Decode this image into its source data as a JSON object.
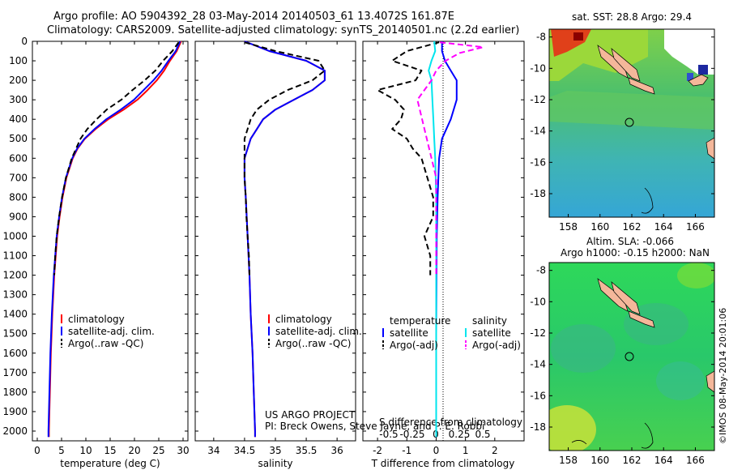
{
  "header": {
    "line1": "Argo profile: AO 5904392_28 03-May-2014 20140503_61 13.4072S 161.87E",
    "line2": "Climatology: CARS2009. Satellite-adjusted climatology: synTS_20140501.nc (2.2d earlier)"
  },
  "colors": {
    "climatology": "#ff0000",
    "satellite": "#0000ff",
    "argo": "#000000",
    "salinity_satellite": "#00e5ee",
    "salinity_argo": "#ff00ff"
  },
  "chart_data": [
    {
      "id": "temperature",
      "type": "line",
      "xlabel": "temperature (deg C)",
      "ylabel": "",
      "xlim": [
        -1,
        31
      ],
      "ylim": [
        2050,
        0
      ],
      "xticks": [
        0,
        5,
        10,
        15,
        20,
        25,
        30
      ],
      "yticks": [
        0,
        100,
        200,
        300,
        400,
        500,
        600,
        700,
        800,
        900,
        1000,
        1100,
        1200,
        1300,
        1400,
        1500,
        1600,
        1700,
        1800,
        1900,
        2000
      ],
      "legend": [
        "climatology",
        "satellite-adj. clim.",
        "Argo(..raw -QC)"
      ],
      "series": [
        {
          "name": "climatology",
          "depth": [
            0,
            50,
            100,
            150,
            200,
            250,
            300,
            350,
            400,
            450,
            500,
            550,
            600,
            700,
            800,
            900,
            1000,
            1200,
            1400,
            1600,
            1800,
            2000,
            2030
          ],
          "values": [
            29.6,
            28.7,
            27.3,
            26.1,
            24.6,
            22.7,
            20.6,
            17.8,
            14.6,
            12.0,
            9.8,
            8.3,
            7.3,
            6.0,
            5.2,
            4.6,
            4.1,
            3.5,
            3.1,
            2.8,
            2.6,
            2.4,
            2.4
          ]
        },
        {
          "name": "satellite-adj. clim.",
          "depth": [
            0,
            50,
            100,
            150,
            200,
            250,
            300,
            350,
            400,
            450,
            500,
            550,
            600,
            700,
            800,
            900,
            1000,
            1200,
            1400,
            1600,
            1800,
            2000,
            2030
          ],
          "values": [
            29.4,
            28.5,
            27.0,
            25.6,
            23.9,
            21.9,
            19.9,
            17.2,
            14.2,
            11.8,
            9.7,
            8.2,
            7.2,
            5.9,
            5.1,
            4.5,
            4.0,
            3.4,
            3.0,
            2.7,
            2.5,
            2.3,
            2.3
          ]
        },
        {
          "name": "Argo(..raw -QC)",
          "depth": [
            5,
            50,
            100,
            150,
            200,
            250,
            300,
            350,
            400,
            450,
            500,
            550,
            600,
            700,
            800,
            900,
            1000,
            1100,
            1200
          ],
          "values": [
            29.1,
            27.8,
            25.9,
            24.3,
            22.1,
            19.6,
            17.3,
            14.3,
            12.2,
            10.3,
            8.9,
            8.0,
            7.1,
            5.9,
            5.1,
            4.5,
            4.0,
            3.7,
            3.5
          ]
        }
      ]
    },
    {
      "id": "salinity",
      "type": "line",
      "xlabel": "salinity",
      "xlim": [
        33.7,
        36.3
      ],
      "ylim": [
        2050,
        0
      ],
      "xticks": [
        34,
        34.5,
        35,
        35.5,
        36
      ],
      "legend": [
        "climatology",
        "satellite-adj. clim.",
        "Argo(..raw -QC)"
      ],
      "annotation": [
        "US ARGO PROJECT",
        "PI: Breck Owens, Steve Jayne, and P. E. Robbi"
      ],
      "series": [
        {
          "name": "climatology",
          "depth": [
            0,
            50,
            100,
            150,
            200,
            250,
            300,
            350,
            400,
            450,
            500,
            600,
            700,
            800,
            1000,
            1200,
            1400,
            1600,
            1800,
            2000,
            2030
          ],
          "values": [
            34.5,
            34.9,
            35.5,
            35.8,
            35.8,
            35.6,
            35.3,
            35.0,
            34.8,
            34.7,
            34.6,
            34.5,
            34.5,
            34.52,
            34.55,
            34.58,
            34.6,
            34.63,
            34.65,
            34.67,
            34.67
          ]
        },
        {
          "name": "satellite-adj. clim.",
          "depth": [
            0,
            50,
            100,
            150,
            200,
            250,
            300,
            350,
            400,
            450,
            500,
            600,
            700,
            800,
            1000,
            1200,
            1400,
            1600,
            1800,
            2000,
            2030
          ],
          "values": [
            34.5,
            34.9,
            35.5,
            35.8,
            35.8,
            35.6,
            35.3,
            35.0,
            34.8,
            34.7,
            34.6,
            34.5,
            34.5,
            34.52,
            34.55,
            34.58,
            34.6,
            34.63,
            34.65,
            34.67,
            34.67
          ]
        },
        {
          "name": "Argo(..raw -QC)",
          "depth": [
            5,
            50,
            100,
            150,
            200,
            250,
            300,
            350,
            400,
            450,
            500,
            600,
            700,
            800,
            900,
            1000,
            1100,
            1200
          ],
          "values": [
            34.5,
            35.0,
            35.7,
            35.8,
            35.6,
            35.2,
            34.9,
            34.7,
            34.6,
            34.55,
            34.5,
            34.5,
            34.5,
            34.52,
            34.53,
            34.55,
            34.57,
            34.58
          ]
        }
      ]
    },
    {
      "id": "difference",
      "type": "line",
      "xlabel": "T difference from climatology",
      "xlabel_top": "S difference from climatology",
      "xlim": [
        -2.5,
        3.0
      ],
      "ylim": [
        2050,
        0
      ],
      "xticks": [
        -2,
        -1,
        0,
        1,
        2
      ],
      "xticks_top": [
        "-0.5",
        "-0.25",
        "0",
        "0.25",
        "0.5"
      ],
      "legend_titles": [
        "temperature",
        "salinity"
      ],
      "legend": [
        "satellite",
        "Argo(-adj)",
        "satellite",
        "Argo(-adj)"
      ],
      "series": [
        {
          "name": "satellite",
          "depth": [
            0,
            50,
            100,
            150,
            200,
            300,
            400,
            500,
            600,
            800,
            1000,
            1500,
            2000,
            2030
          ],
          "values": [
            0.2,
            0.2,
            0.3,
            0.5,
            0.7,
            0.7,
            0.5,
            0.2,
            0.1,
            0.05,
            0.02,
            0.0,
            0.0,
            0.0
          ]
        },
        {
          "name": "Argo(-adj)",
          "depth": [
            5,
            50,
            100,
            150,
            200,
            250,
            300,
            350,
            400,
            450,
            500,
            550,
            600,
            700,
            800,
            900,
            1000,
            1100,
            1200
          ],
          "values": [
            0.1,
            -1.0,
            -1.5,
            -0.5,
            -0.7,
            -2.0,
            -1.4,
            -1.1,
            -1.2,
            -1.5,
            -1.0,
            -0.8,
            -0.5,
            -0.3,
            -0.1,
            -0.1,
            -0.4,
            -0.2,
            -0.2
          ]
        },
        {
          "name": "satellite",
          "depth": [
            0,
            50,
            100,
            150,
            200,
            300,
            400,
            500,
            600,
            800,
            1000,
            1500,
            2000,
            2030
          ],
          "values": [
            -0.02,
            -0.01,
            -0.05,
            -0.08,
            -0.05,
            -0.04,
            -0.03,
            -0.02,
            -0.01,
            0.0,
            0.0,
            0.0,
            0.0,
            0.0
          ]
        },
        {
          "name": "Argo(-adj)",
          "depth": [
            5,
            30,
            60,
            100,
            150,
            200,
            300,
            400,
            500,
            600,
            700,
            800,
            1000,
            1200
          ],
          "values": [
            0.04,
            0.5,
            0.25,
            0.1,
            0.0,
            -0.05,
            -0.2,
            -0.15,
            -0.1,
            -0.05,
            0.0,
            0.0,
            0.0,
            0.0
          ]
        }
      ]
    },
    {
      "id": "sst-map",
      "type": "heatmap",
      "title": "sat. SST: 28.8 Argo: 29.4",
      "xlim": [
        156.8,
        167.2
      ],
      "ylim": [
        -19.5,
        -7.5
      ],
      "xticks": [
        158,
        160,
        162,
        164,
        166
      ],
      "yticks": [
        -8,
        -10,
        -12,
        -14,
        -16,
        -18
      ],
      "marker": {
        "lon": 161.87,
        "lat": -13.41
      }
    },
    {
      "id": "sla-map",
      "type": "heatmap",
      "title": "Altim. SLA: -0.066",
      "subtitle": "Argo h1000: -0.15 h2000: NaN",
      "xlim": [
        156.8,
        167.2
      ],
      "ylim": [
        -19.5,
        -7.5
      ],
      "xticks": [
        158,
        160,
        162,
        164,
        166
      ],
      "yticks": [
        -8,
        -10,
        -12,
        -14,
        -16,
        -18
      ],
      "marker": {
        "lon": 161.87,
        "lat": -13.41
      }
    }
  ],
  "footer": {
    "credit": "©IMOS 08-May-2014 20:01:06"
  }
}
